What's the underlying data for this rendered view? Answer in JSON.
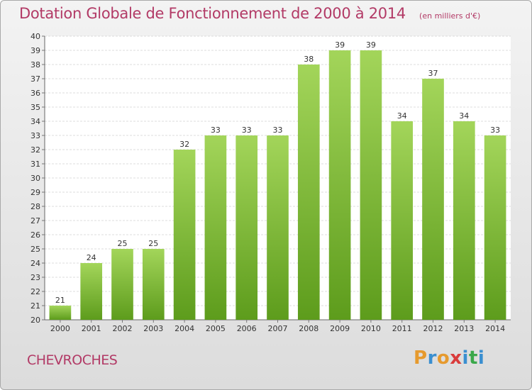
{
  "header": {
    "title": "Dotation Globale de Fonctionnement de 2000 à 2014",
    "unit_note": "(en milliers d'€)"
  },
  "place_name": "CHEVROCHES",
  "brand": {
    "text": "Proxiti",
    "letter_colors": [
      "#e69a2e",
      "#3a8fd0",
      "#e69a2e",
      "#d93c3c",
      "#3a8fd0",
      "#3aa84a",
      "#3a8fd0"
    ]
  },
  "colors": {
    "bar_top": "#a3d55a",
    "bar_bottom": "#5d9c1c",
    "title": "#b23a66"
  },
  "chart_data": {
    "type": "bar",
    "title": "Dotation Globale de Fonctionnement de 2000 à 2014",
    "subtitle": "(en milliers d'€)",
    "categories": [
      "2000",
      "2001",
      "2002",
      "2003",
      "2004",
      "2005",
      "2006",
      "2007",
      "2008",
      "2009",
      "2010",
      "2011",
      "2012",
      "2013",
      "2014"
    ],
    "values": [
      21,
      24,
      25,
      25,
      32,
      33,
      33,
      33,
      38,
      39,
      39,
      34,
      37,
      34,
      33
    ],
    "ylim": [
      20,
      40
    ],
    "yticks": [
      20,
      21,
      22,
      23,
      24,
      25,
      26,
      27,
      28,
      29,
      30,
      31,
      32,
      33,
      34,
      35,
      36,
      37,
      38,
      39,
      40
    ],
    "grid": true,
    "data_labels": true
  }
}
